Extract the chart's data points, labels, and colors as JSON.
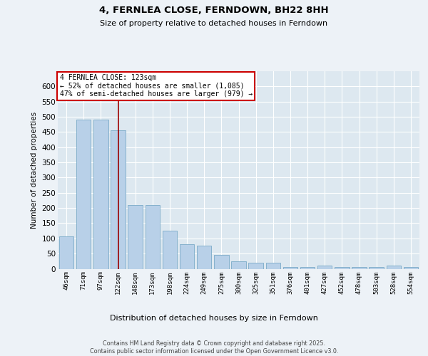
{
  "title": "4, FERNLEA CLOSE, FERNDOWN, BH22 8HH",
  "subtitle": "Size of property relative to detached houses in Ferndown",
  "xlabel": "Distribution of detached houses by size in Ferndown",
  "ylabel": "Number of detached properties",
  "footer_line1": "Contains HM Land Registry data © Crown copyright and database right 2025.",
  "footer_line2": "Contains public sector information licensed under the Open Government Licence v3.0.",
  "bar_color": "#b8d0e8",
  "bar_edge_color": "#7aaac8",
  "background_color": "#dde8f0",
  "grid_color": "#ffffff",
  "vline_color": "#990000",
  "annotation_text": "4 FERNLEA CLOSE: 123sqm\n← 52% of detached houses are smaller (1,085)\n47% of semi-detached houses are larger (979) →",
  "annotation_box_color": "#ffffff",
  "annotation_box_edge": "#cc0000",
  "categories": [
    "46sqm",
    "71sqm",
    "97sqm",
    "122sqm",
    "148sqm",
    "173sqm",
    "198sqm",
    "224sqm",
    "249sqm",
    "275sqm",
    "300sqm",
    "325sqm",
    "351sqm",
    "376sqm",
    "401sqm",
    "427sqm",
    "452sqm",
    "478sqm",
    "503sqm",
    "528sqm",
    "554sqm"
  ],
  "values": [
    107,
    490,
    490,
    455,
    210,
    210,
    125,
    80,
    75,
    45,
    25,
    20,
    20,
    5,
    5,
    10,
    5,
    5,
    5,
    10,
    5
  ],
  "ylim": [
    0,
    650
  ],
  "yticks": [
    0,
    50,
    100,
    150,
    200,
    250,
    300,
    350,
    400,
    450,
    500,
    550,
    600
  ],
  "bar_width": 0.85,
  "property_size_sqm": 123,
  "vline_x_index": 3.04,
  "figsize": [
    6.0,
    5.0
  ],
  "dpi": 100
}
